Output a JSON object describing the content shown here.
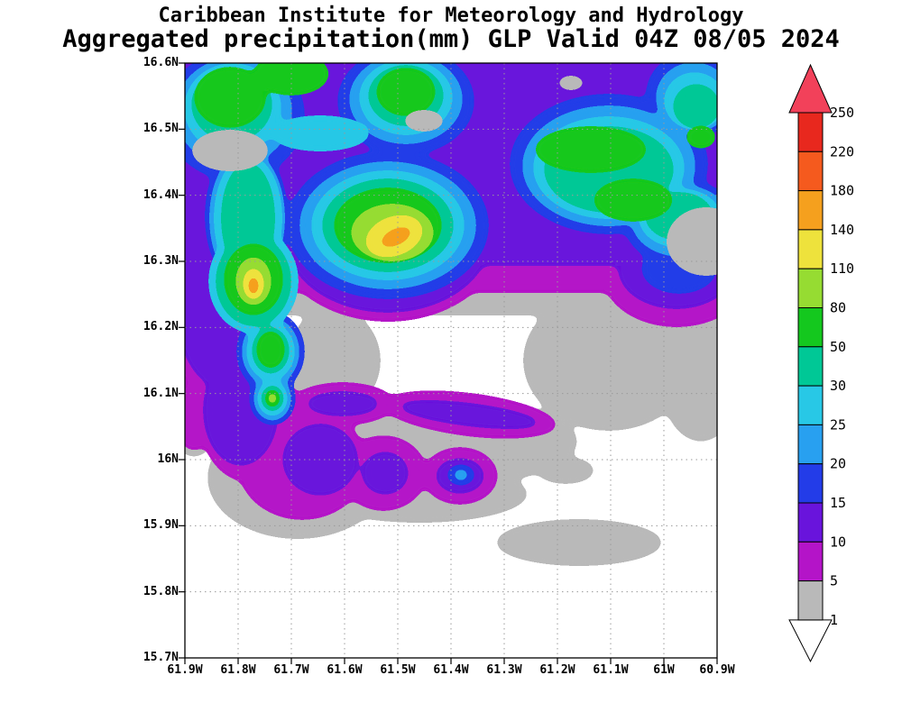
{
  "header": {
    "title_line1": "Caribbean Institute for Meteorology and Hydrology",
    "title_line2": "Aggregated precipitation(mm) GLP Valid 04Z 08/05 2024"
  },
  "colorbar": {
    "labels_top_to_bottom": [
      "250",
      "220",
      "180",
      "140",
      "110",
      "80",
      "50",
      "30",
      "25",
      "20",
      "15",
      "10",
      "5",
      "1"
    ],
    "segment_colors_top_to_bottom": [
      "#e8281e",
      "#f55a1e",
      "#f5a01e",
      "#eee23c",
      "#96dc32",
      "#14c81e",
      "#00c896",
      "#28c8e6",
      "#28a0f0",
      "#233ce8",
      "#6914dc",
      "#b414c8",
      "#b9b9b9"
    ],
    "above_max_arrow_color": "#f2415a",
    "below_min_arrow_color": "#ffffff"
  },
  "chart_data": {
    "type": "heatmap",
    "subtype": "filled-contour precipitation map",
    "title": "Caribbean Institute for Meteorology and Hydrology",
    "subtitle": "Aggregated precipitation(mm) GLP Valid 04Z 08/05 2024",
    "units": "mm",
    "x_axis": {
      "label": "longitude",
      "ticks": [
        "61.9W",
        "61.8W",
        "61.7W",
        "61.6W",
        "61.5W",
        "61.4W",
        "61.3W",
        "61.2W",
        "61.1W",
        "61W",
        "60.9W"
      ],
      "range": [
        "61.9W",
        "60.9W"
      ]
    },
    "y_axis": {
      "label": "latitude",
      "ticks": [
        "16.6N",
        "16.5N",
        "16.4N",
        "16.3N",
        "16.2N",
        "16.1N",
        "16N",
        "15.9N",
        "15.8N",
        "15.7N"
      ],
      "range": [
        "16.6N",
        "15.7N"
      ]
    },
    "contour_levels": [
      1,
      5,
      10,
      15,
      20,
      25,
      30,
      50,
      80,
      110,
      140,
      180,
      220,
      250
    ],
    "level_fill": {
      "1": "#b9b9b9",
      "5": "#b414c8",
      "10": "#6914dc",
      "15": "#233ce8",
      "20": "#28a0f0",
      "25": "#28c8e6",
      "30": "#00c896",
      "50": "#14c81e",
      "80": "#96dc32",
      "110": "#eee23c",
      "140": "#f5a01e",
      "180": "#f55e1e",
      "220": "#e8281e"
    },
    "grid": "dotted 0.1-degree graticule",
    "legend_position": "right",
    "observed_maxima": [
      {
        "approx_lon": "61.53W",
        "approx_lat": "16.35N",
        "band_mm": "140-180"
      },
      {
        "approx_lon": "61.77W",
        "approx_lat": "16.27N",
        "band_mm": "140-180"
      }
    ],
    "summary": "Heaviest aggregated precipitation (30-180 mm) lies across the north of the domain between 16.25N and 16.6N, with green/yellow/orange cores near 61.5W 16.35N and 61.78W 16.27N; a purple-magenta band extends down the west side near 61.85W, scattered 5-20 mm streaks cross 16.0-16.1N, and most of the area south of 16N is below 5 mm (gray) or below 1 mm (white)."
  }
}
